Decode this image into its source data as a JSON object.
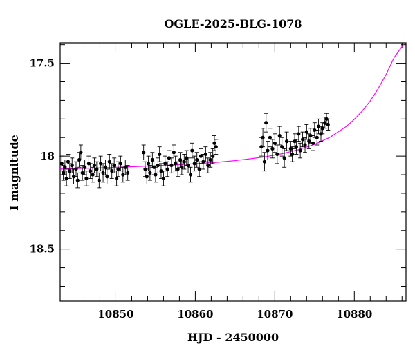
{
  "chart_data": {
    "type": "scatter",
    "title": "OGLE-2025-BLG-1078",
    "xlabel": "HJD - 2450000",
    "ylabel": "I magnitude",
    "xlim": [
      10843,
      10886.5
    ],
    "ylim": [
      18.78,
      17.39
    ],
    "y_inverted": true,
    "x_ticks": [
      10850,
      10860,
      10870,
      10880
    ],
    "x_tick_labels": [
      "10850",
      "10860",
      "10870",
      "10880"
    ],
    "y_ticks": [
      17.5,
      18,
      18.5
    ],
    "y_tick_labels": [
      "17.5",
      "18",
      "18.5"
    ],
    "grid": false,
    "colors": {
      "data": "#000000",
      "model": "#ff00ff",
      "axes": "#000000"
    },
    "series": [
      {
        "kind": "data",
        "points": [
          {
            "x": 10843.2,
            "y": 18.04,
            "err": 0.04
          },
          {
            "x": 10843.4,
            "y": 18.09,
            "err": 0.04
          },
          {
            "x": 10843.6,
            "y": 18.06,
            "err": 0.04
          },
          {
            "x": 10843.8,
            "y": 18.12,
            "err": 0.04
          },
          {
            "x": 10844.0,
            "y": 18.03,
            "err": 0.04
          },
          {
            "x": 10844.2,
            "y": 18.08,
            "err": 0.04
          },
          {
            "x": 10844.5,
            "y": 18.05,
            "err": 0.04
          },
          {
            "x": 10844.7,
            "y": 18.11,
            "err": 0.04
          },
          {
            "x": 10845.0,
            "y": 18.07,
            "err": 0.04
          },
          {
            "x": 10845.2,
            "y": 18.13,
            "err": 0.04
          },
          {
            "x": 10845.4,
            "y": 18.02,
            "err": 0.04
          },
          {
            "x": 10845.6,
            "y": 17.98,
            "err": 0.04
          },
          {
            "x": 10845.8,
            "y": 18.09,
            "err": 0.04
          },
          {
            "x": 10846.1,
            "y": 18.06,
            "err": 0.04
          },
          {
            "x": 10846.3,
            "y": 18.12,
            "err": 0.04
          },
          {
            "x": 10846.6,
            "y": 18.04,
            "err": 0.04
          },
          {
            "x": 10846.8,
            "y": 18.08,
            "err": 0.04
          },
          {
            "x": 10847.1,
            "y": 18.1,
            "err": 0.04
          },
          {
            "x": 10847.3,
            "y": 18.05,
            "err": 0.04
          },
          {
            "x": 10847.6,
            "y": 18.07,
            "err": 0.04
          },
          {
            "x": 10847.9,
            "y": 18.13,
            "err": 0.04
          },
          {
            "x": 10848.1,
            "y": 18.04,
            "err": 0.04
          },
          {
            "x": 10848.4,
            "y": 18.09,
            "err": 0.05
          },
          {
            "x": 10848.7,
            "y": 18.06,
            "err": 0.04
          },
          {
            "x": 10848.9,
            "y": 18.11,
            "err": 0.04
          },
          {
            "x": 10849.2,
            "y": 18.03,
            "err": 0.04
          },
          {
            "x": 10849.5,
            "y": 18.08,
            "err": 0.04
          },
          {
            "x": 10849.8,
            "y": 18.05,
            "err": 0.04
          },
          {
            "x": 10850.1,
            "y": 18.12,
            "err": 0.04
          },
          {
            "x": 10850.3,
            "y": 18.07,
            "err": 0.04
          },
          {
            "x": 10850.6,
            "y": 18.04,
            "err": 0.04
          },
          {
            "x": 10850.9,
            "y": 18.1,
            "err": 0.04
          },
          {
            "x": 10851.2,
            "y": 18.06,
            "err": 0.04
          },
          {
            "x": 10851.5,
            "y": 18.09,
            "err": 0.04
          },
          {
            "x": 10853.5,
            "y": 17.98,
            "err": 0.04
          },
          {
            "x": 10853.7,
            "y": 18.07,
            "err": 0.04
          },
          {
            "x": 10853.9,
            "y": 18.11,
            "err": 0.04
          },
          {
            "x": 10854.1,
            "y": 18.04,
            "err": 0.04
          },
          {
            "x": 10854.3,
            "y": 18.09,
            "err": 0.04
          },
          {
            "x": 10854.6,
            "y": 18.02,
            "err": 0.04
          },
          {
            "x": 10854.8,
            "y": 18.06,
            "err": 0.04
          },
          {
            "x": 10855.0,
            "y": 18.1,
            "err": 0.04
          },
          {
            "x": 10855.3,
            "y": 18.05,
            "err": 0.04
          },
          {
            "x": 10855.5,
            "y": 17.99,
            "err": 0.04
          },
          {
            "x": 10855.7,
            "y": 18.08,
            "err": 0.04
          },
          {
            "x": 10856.0,
            "y": 18.12,
            "err": 0.04
          },
          {
            "x": 10856.2,
            "y": 18.04,
            "err": 0.04
          },
          {
            "x": 10856.5,
            "y": 18.07,
            "err": 0.04
          },
          {
            "x": 10856.7,
            "y": 18.01,
            "err": 0.04
          },
          {
            "x": 10857.0,
            "y": 18.05,
            "err": 0.04
          },
          {
            "x": 10857.3,
            "y": 17.98,
            "err": 0.04
          },
          {
            "x": 10857.5,
            "y": 18.04,
            "err": 0.04
          },
          {
            "x": 10857.8,
            "y": 18.07,
            "err": 0.04
          },
          {
            "x": 10858.1,
            "y": 18.02,
            "err": 0.04
          },
          {
            "x": 10858.3,
            "y": 18.06,
            "err": 0.04
          },
          {
            "x": 10858.6,
            "y": 18.03,
            "err": 0.04
          },
          {
            "x": 10858.9,
            "y": 18.01,
            "err": 0.04
          },
          {
            "x": 10859.1,
            "y": 18.05,
            "err": 0.04
          },
          {
            "x": 10859.4,
            "y": 18.1,
            "err": 0.04
          },
          {
            "x": 10859.6,
            "y": 17.97,
            "err": 0.04
          },
          {
            "x": 10859.9,
            "y": 18.04,
            "err": 0.04
          },
          {
            "x": 10860.2,
            "y": 18.02,
            "err": 0.04
          },
          {
            "x": 10860.5,
            "y": 18.07,
            "err": 0.04
          },
          {
            "x": 10860.7,
            "y": 18.0,
            "err": 0.04
          },
          {
            "x": 10861.0,
            "y": 18.03,
            "err": 0.04
          },
          {
            "x": 10861.3,
            "y": 17.99,
            "err": 0.04
          },
          {
            "x": 10861.6,
            "y": 18.05,
            "err": 0.04
          },
          {
            "x": 10861.9,
            "y": 18.02,
            "err": 0.04
          },
          {
            "x": 10862.2,
            "y": 18.0,
            "err": 0.04
          },
          {
            "x": 10862.4,
            "y": 17.93,
            "err": 0.04
          },
          {
            "x": 10862.6,
            "y": 17.95,
            "err": 0.04
          },
          {
            "x": 10868.3,
            "y": 17.95,
            "err": 0.05
          },
          {
            "x": 10868.5,
            "y": 17.9,
            "err": 0.05
          },
          {
            "x": 10868.7,
            "y": 18.03,
            "err": 0.05
          },
          {
            "x": 10868.9,
            "y": 17.82,
            "err": 0.05
          },
          {
            "x": 10869.1,
            "y": 17.97,
            "err": 0.05
          },
          {
            "x": 10869.4,
            "y": 17.9,
            "err": 0.05
          },
          {
            "x": 10869.7,
            "y": 17.96,
            "err": 0.05
          },
          {
            "x": 10870.0,
            "y": 17.93,
            "err": 0.05
          },
          {
            "x": 10870.3,
            "y": 17.99,
            "err": 0.05
          },
          {
            "x": 10870.6,
            "y": 17.89,
            "err": 0.05
          },
          {
            "x": 10870.9,
            "y": 17.95,
            "err": 0.05
          },
          {
            "x": 10871.2,
            "y": 18.01,
            "err": 0.05
          },
          {
            "x": 10871.5,
            "y": 17.92,
            "err": 0.05
          },
          {
            "x": 10872.0,
            "y": 17.96,
            "err": 0.04
          },
          {
            "x": 10872.2,
            "y": 17.99,
            "err": 0.04
          },
          {
            "x": 10872.5,
            "y": 17.92,
            "err": 0.04
          },
          {
            "x": 10872.7,
            "y": 17.95,
            "err": 0.04
          },
          {
            "x": 10873.0,
            "y": 17.88,
            "err": 0.04
          },
          {
            "x": 10873.2,
            "y": 17.97,
            "err": 0.04
          },
          {
            "x": 10873.5,
            "y": 17.91,
            "err": 0.04
          },
          {
            "x": 10873.8,
            "y": 17.94,
            "err": 0.04
          },
          {
            "x": 10874.0,
            "y": 17.87,
            "err": 0.04
          },
          {
            "x": 10874.3,
            "y": 17.92,
            "err": 0.04
          },
          {
            "x": 10874.5,
            "y": 17.89,
            "err": 0.04
          },
          {
            "x": 10874.8,
            "y": 17.93,
            "err": 0.04
          },
          {
            "x": 10875.0,
            "y": 17.86,
            "err": 0.04
          },
          {
            "x": 10875.3,
            "y": 17.9,
            "err": 0.04
          },
          {
            "x": 10875.5,
            "y": 17.84,
            "err": 0.04
          },
          {
            "x": 10875.8,
            "y": 17.88,
            "err": 0.04
          },
          {
            "x": 10876.0,
            "y": 17.85,
            "err": 0.03
          },
          {
            "x": 10876.3,
            "y": 17.82,
            "err": 0.03
          },
          {
            "x": 10876.5,
            "y": 17.8,
            "err": 0.03
          },
          {
            "x": 10876.7,
            "y": 17.83,
            "err": 0.03
          }
        ]
      },
      {
        "kind": "model",
        "x": [
          10843,
          10846,
          10849,
          10852,
          10855,
          10858,
          10861,
          10863,
          10865,
          10867,
          10869,
          10871,
          10873,
          10875,
          10877,
          10879,
          10880,
          10881,
          10882,
          10883,
          10884,
          10885,
          10886,
          10886.5
        ],
        "y": [
          18.07,
          18.066,
          18.062,
          18.057,
          18.052,
          18.046,
          18.038,
          18.032,
          18.024,
          18.014,
          18.002,
          17.986,
          17.965,
          17.937,
          17.897,
          17.84,
          17.802,
          17.757,
          17.703,
          17.637,
          17.56,
          17.47,
          17.41,
          17.38
        ]
      }
    ]
  }
}
